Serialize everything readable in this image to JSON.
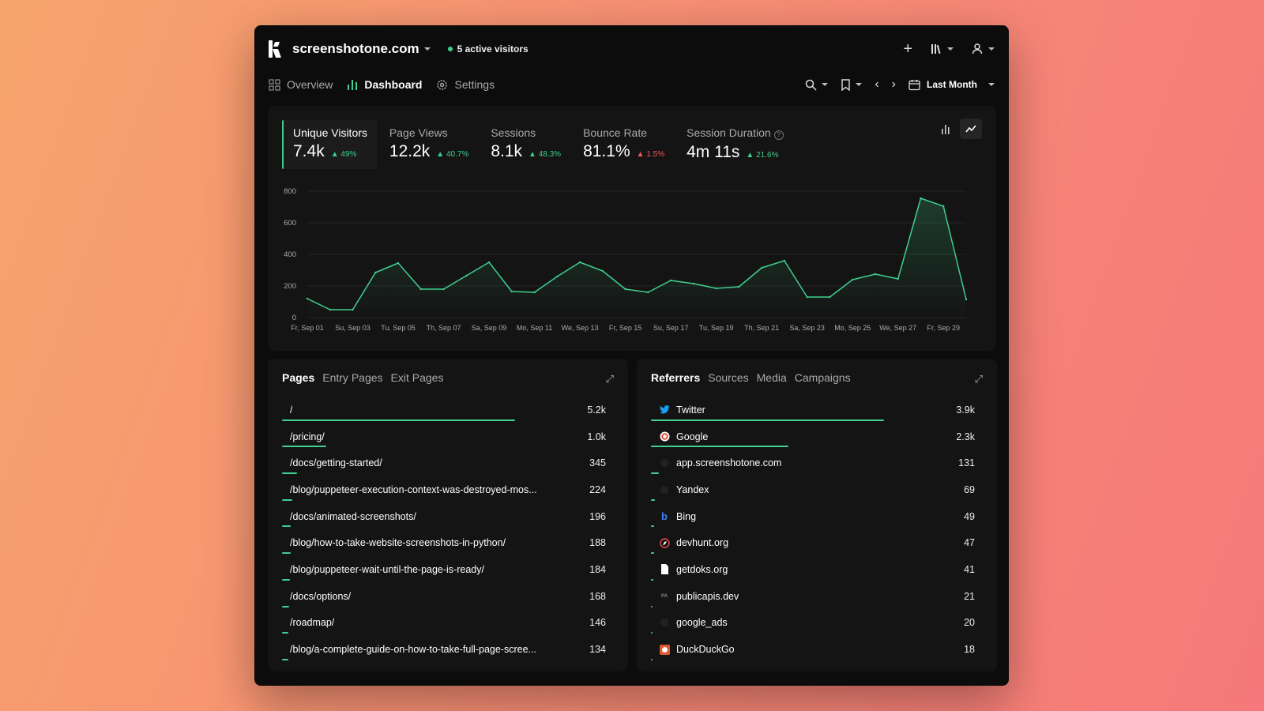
{
  "site": {
    "name": "screenshotone.com",
    "active_visitors": "5 active visitors"
  },
  "nav": {
    "overview": "Overview",
    "dashboard": "Dashboard",
    "settings": "Settings",
    "date_range": "Last Month"
  },
  "stats": [
    {
      "label": "Unique Visitors",
      "value": "7.4k",
      "change": "49%",
      "trend": "up"
    },
    {
      "label": "Page Views",
      "value": "12.2k",
      "change": "40.7%",
      "trend": "up"
    },
    {
      "label": "Sessions",
      "value": "8.1k",
      "change": "48.3%",
      "trend": "up"
    },
    {
      "label": "Bounce Rate",
      "value": "81.1%",
      "change": "1.5%",
      "trend": "down"
    },
    {
      "label": "Session Duration",
      "value": "4m 11s",
      "change": "21.6%",
      "trend": "up"
    }
  ],
  "chart_data": {
    "type": "area",
    "x": [
      "Fr, Sep 01",
      "Sa, Sep 02",
      "Su, Sep 03",
      "Mo, Sep 04",
      "Tu, Sep 05",
      "We, Sep 06",
      "Th, Sep 07",
      "Fr, Sep 08",
      "Sa, Sep 09",
      "Su, Sep 10",
      "Mo, Sep 11",
      "Tu, Sep 12",
      "We, Sep 13",
      "Th, Sep 14",
      "Fr, Sep 15",
      "Sa, Sep 16",
      "Su, Sep 17",
      "Mo, Sep 18",
      "Tu, Sep 19",
      "We, Sep 20",
      "Th, Sep 21",
      "Fr, Sep 22",
      "Sa, Sep 23",
      "Su, Sep 24",
      "Mo, Sep 25",
      "Tu, Sep 26",
      "We, Sep 27",
      "Th, Sep 28",
      "Fr, Sep 29",
      "Sa, Sep 30"
    ],
    "tick_labels": [
      "Fr, Sep 01",
      "Su, Sep 03",
      "Tu, Sep 05",
      "Th, Sep 07",
      "Sa, Sep 09",
      "Mo, Sep 11",
      "We, Sep 13",
      "Fr, Sep 15",
      "Su, Sep 17",
      "Tu, Sep 19",
      "Th, Sep 21",
      "Sa, Sep 23",
      "Mo, Sep 25",
      "We, Sep 27",
      "Fr, Sep 29"
    ],
    "series": [
      {
        "values": [
          120,
          50,
          50,
          285,
          345,
          180,
          180,
          265,
          350,
          165,
          160,
          260,
          350,
          295,
          180,
          160,
          235,
          215,
          185,
          195,
          315,
          360,
          130,
          130,
          240,
          275,
          245,
          755,
          705,
          115
        ]
      }
    ],
    "ylim": [
      0,
      800
    ],
    "yticks": [
      0,
      200,
      400,
      600,
      800
    ],
    "grid": true,
    "color": "#3fcf8e"
  },
  "pages": {
    "tabs": [
      "Pages",
      "Entry Pages",
      "Exit Pages"
    ],
    "rows": [
      {
        "label": "/",
        "value": "5.2k",
        "fraction": 1.0
      },
      {
        "label": "/pricing/",
        "value": "1.0k",
        "fraction": 0.19
      },
      {
        "label": "/docs/getting-started/",
        "value": "345",
        "fraction": 0.066
      },
      {
        "label": "/blog/puppeteer-execution-context-was-destroyed-mos...",
        "value": "224",
        "fraction": 0.043
      },
      {
        "label": "/docs/animated-screenshots/",
        "value": "196",
        "fraction": 0.038
      },
      {
        "label": "/blog/how-to-take-website-screenshots-in-python/",
        "value": "188",
        "fraction": 0.036
      },
      {
        "label": "/blog/puppeteer-wait-until-the-page-is-ready/",
        "value": "184",
        "fraction": 0.035
      },
      {
        "label": "/docs/options/",
        "value": "168",
        "fraction": 0.032
      },
      {
        "label": "/roadmap/",
        "value": "146",
        "fraction": 0.028
      },
      {
        "label": "/blog/a-complete-guide-on-how-to-take-full-page-scree...",
        "value": "134",
        "fraction": 0.026
      }
    ]
  },
  "referrers": {
    "tabs": [
      "Referrers",
      "Sources",
      "Media",
      "Campaigns"
    ],
    "rows": [
      {
        "label": "Twitter",
        "value": "3.9k",
        "fraction": 1.0,
        "icon": "twitter-icon",
        "icon_color": "#1d9bf0"
      },
      {
        "label": "Google",
        "value": "2.3k",
        "fraction": 0.59,
        "icon": "google-icon",
        "icon_color": "#ea4335"
      },
      {
        "label": "app.screenshotone.com",
        "value": "131",
        "fraction": 0.034,
        "icon": "globe-icon",
        "icon_color": "#222222"
      },
      {
        "label": "Yandex",
        "value": "69",
        "fraction": 0.018,
        "icon": "globe-icon",
        "icon_color": "#222222"
      },
      {
        "label": "Bing",
        "value": "49",
        "fraction": 0.013,
        "icon": "bing-icon",
        "icon_color": "#3b82f6"
      },
      {
        "label": "devhunt.org",
        "value": "47",
        "fraction": 0.012,
        "icon": "devhunt-icon",
        "icon_color": "#e24b4b"
      },
      {
        "label": "getdoks.org",
        "value": "41",
        "fraction": 0.011,
        "icon": "document-icon",
        "icon_color": "#ffffff"
      },
      {
        "label": "publicapis.dev",
        "value": "21",
        "fraction": 0.005,
        "icon": "publicapis-icon",
        "icon_color": "#888888"
      },
      {
        "label": "google_ads",
        "value": "20",
        "fraction": 0.005,
        "icon": "globe-icon",
        "icon_color": "#222222"
      },
      {
        "label": "DuckDuckGo",
        "value": "18",
        "fraction": 0.005,
        "icon": "duckduckgo-icon",
        "icon_color": "#de5833"
      }
    ]
  }
}
